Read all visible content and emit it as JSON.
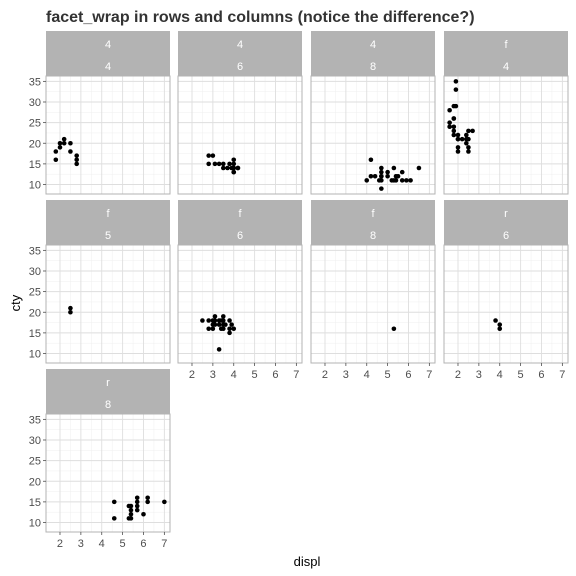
{
  "chart_data": {
    "type": "scatter",
    "title": "facet_wrap in rows and columns (notice the difference?)",
    "xlabel": "displ",
    "ylabel": "cty",
    "xlim": [
      1.6,
      7.0
    ],
    "ylim": [
      9,
      35
    ],
    "x_breaks": [
      2,
      3,
      4,
      5,
      6,
      7
    ],
    "y_breaks": [
      10,
      15,
      20,
      25,
      30,
      35
    ],
    "grid": true,
    "facet_vars": [
      "drv",
      "cyl"
    ],
    "ncol": 4,
    "panels": [
      {
        "strip": [
          "4",
          "4"
        ],
        "points": [
          [
            1.8,
            18
          ],
          [
            1.8,
            16
          ],
          [
            2.0,
            20
          ],
          [
            2.0,
            19
          ],
          [
            2.2,
            21
          ],
          [
            2.2,
            20
          ],
          [
            2.5,
            20
          ],
          [
            2.5,
            18
          ],
          [
            2.8,
            17
          ],
          [
            2.8,
            16
          ],
          [
            2.8,
            15
          ]
        ]
      },
      {
        "strip": [
          "4",
          "6"
        ],
        "points": [
          [
            2.8,
            17
          ],
          [
            3.0,
            17
          ],
          [
            2.8,
            15
          ],
          [
            3.1,
            15
          ],
          [
            3.3,
            15
          ],
          [
            3.5,
            15
          ],
          [
            3.7,
            14
          ],
          [
            3.8,
            15
          ],
          [
            4.0,
            14
          ],
          [
            4.0,
            16
          ],
          [
            4.0,
            15
          ],
          [
            4.0,
            13
          ],
          [
            4.0,
            13
          ],
          [
            4.2,
            14
          ],
          [
            4.2,
            14
          ],
          [
            3.5,
            14
          ],
          [
            3.9,
            14
          ],
          [
            4.0,
            14
          ]
        ]
      },
      {
        "strip": [
          "4",
          "8"
        ],
        "points": [
          [
            4.0,
            11
          ],
          [
            4.2,
            16
          ],
          [
            4.2,
            12
          ],
          [
            4.4,
            12
          ],
          [
            4.6,
            11
          ],
          [
            4.7,
            13
          ],
          [
            4.7,
            12
          ],
          [
            4.7,
            11
          ],
          [
            4.7,
            14
          ],
          [
            4.7,
            9
          ],
          [
            5.0,
            13
          ],
          [
            5.0,
            12
          ],
          [
            5.2,
            11
          ],
          [
            5.3,
            14
          ],
          [
            5.4,
            11
          ],
          [
            5.4,
            12
          ],
          [
            5.5,
            12
          ],
          [
            5.7,
            13
          ],
          [
            5.7,
            11
          ],
          [
            5.9,
            11
          ],
          [
            6.1,
            11
          ],
          [
            6.5,
            14
          ],
          [
            4.7,
            12
          ],
          [
            5.3,
            11
          ]
        ]
      },
      {
        "strip": [
          "f",
          "4"
        ],
        "points": [
          [
            1.6,
            28
          ],
          [
            1.6,
            24
          ],
          [
            1.6,
            25
          ],
          [
            1.8,
            26
          ],
          [
            1.8,
            29
          ],
          [
            1.8,
            26
          ],
          [
            1.8,
            24
          ],
          [
            1.8,
            23
          ],
          [
            1.8,
            22
          ],
          [
            1.9,
            33
          ],
          [
            1.9,
            35
          ],
          [
            1.9,
            29
          ],
          [
            2.0,
            21
          ],
          [
            2.0,
            19
          ],
          [
            2.0,
            18
          ],
          [
            2.0,
            22
          ],
          [
            2.0,
            21
          ],
          [
            2.2,
            21
          ],
          [
            2.4,
            20
          ],
          [
            2.4,
            21
          ],
          [
            2.4,
            22
          ],
          [
            2.5,
            21
          ],
          [
            2.5,
            19
          ],
          [
            2.5,
            23
          ],
          [
            2.5,
            18
          ],
          [
            2.7,
            23
          ]
        ]
      },
      {
        "strip": [
          "f",
          "5"
        ],
        "points": [
          [
            2.5,
            21
          ],
          [
            2.5,
            20
          ]
        ]
      },
      {
        "strip": [
          "f",
          "6"
        ],
        "points": [
          [
            2.5,
            18
          ],
          [
            2.8,
            16
          ],
          [
            2.8,
            18
          ],
          [
            3.0,
            17
          ],
          [
            3.0,
            16
          ],
          [
            3.1,
            18
          ],
          [
            3.1,
            19
          ],
          [
            3.3,
            17
          ],
          [
            3.3,
            18
          ],
          [
            3.4,
            18
          ],
          [
            3.5,
            19
          ],
          [
            3.5,
            17
          ],
          [
            3.5,
            18
          ],
          [
            3.8,
            16
          ],
          [
            3.8,
            18
          ],
          [
            3.9,
            17
          ],
          [
            4.0,
            16
          ],
          [
            3.8,
            15
          ],
          [
            3.3,
            11
          ],
          [
            3.6,
            17
          ],
          [
            3.1,
            17
          ],
          [
            3.4,
            16
          ],
          [
            3.5,
            16
          ],
          [
            3.0,
            18
          ]
        ]
      },
      {
        "strip": [
          "f",
          "8"
        ],
        "points": [
          [
            5.3,
            16
          ]
        ]
      },
      {
        "strip": [
          "r",
          "6"
        ],
        "points": [
          [
            3.8,
            18
          ],
          [
            4.0,
            17
          ],
          [
            4.0,
            16
          ]
        ]
      },
      {
        "strip": [
          "r",
          "8"
        ],
        "points": [
          [
            4.6,
            11
          ],
          [
            4.6,
            15
          ],
          [
            5.3,
            14
          ],
          [
            5.3,
            11
          ],
          [
            5.4,
            11
          ],
          [
            5.4,
            12
          ],
          [
            5.4,
            13
          ],
          [
            5.4,
            14
          ],
          [
            5.7,
            16
          ],
          [
            5.7,
            15
          ],
          [
            5.7,
            13
          ],
          [
            6.0,
            12
          ],
          [
            6.2,
            15
          ],
          [
            6.2,
            16
          ],
          [
            7.0,
            15
          ],
          [
            5.7,
            14
          ]
        ]
      }
    ]
  }
}
